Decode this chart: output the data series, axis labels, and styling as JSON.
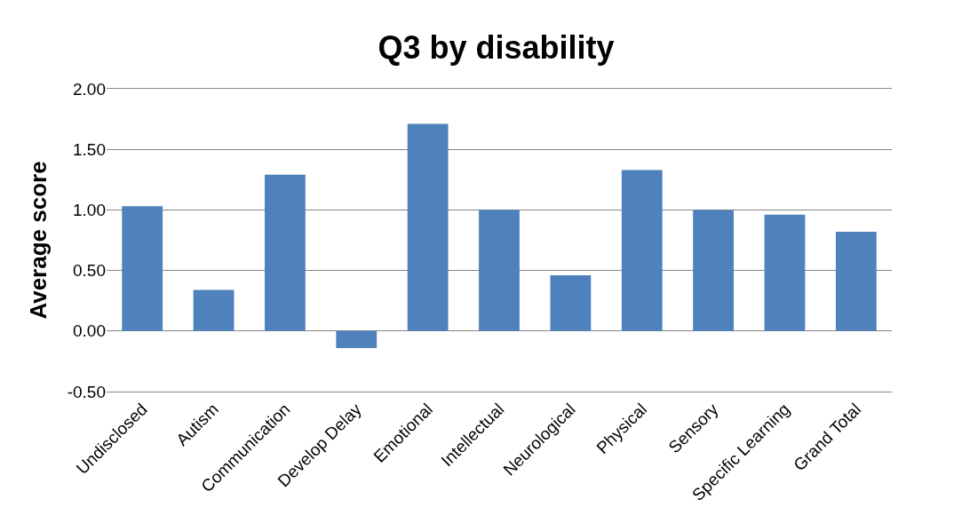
{
  "chart_data": {
    "type": "bar",
    "title": "Q3 by disability",
    "ylabel": "Average score",
    "categories": [
      "Undisclosed",
      "Autism",
      "Communication",
      "Develop Delay",
      "Emotional",
      "Intellectual",
      "Neurological",
      "Physical",
      "Sensory",
      "Specific Learning",
      "Grand Total"
    ],
    "values": [
      1.03,
      0.34,
      1.29,
      -0.14,
      1.71,
      1.0,
      0.46,
      1.33,
      1.0,
      0.96,
      0.82
    ],
    "color": "#4f81bd",
    "ylim": [
      -0.5,
      2.0
    ],
    "yticks": [
      {
        "value": -0.5,
        "label": "-0.50"
      },
      {
        "value": 0,
        "label": "0.00"
      },
      {
        "value": 0.5,
        "label": "0.50"
      },
      {
        "value": 1.0,
        "label": "1.00"
      },
      {
        "value": 1.5,
        "label": "1.50"
      },
      {
        "value": 2.0,
        "label": "2.00"
      }
    ],
    "grid": "y"
  }
}
